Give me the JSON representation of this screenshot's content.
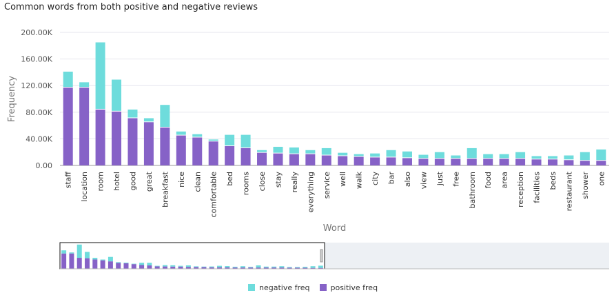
{
  "chart_data": {
    "type": "bar",
    "stacked": true,
    "title": "Common words from both positive and negative reviews",
    "xlabel": "Word",
    "ylabel": "Frequency",
    "ylim": [
      0,
      200000
    ],
    "yticks": [
      "0.00",
      "40.00K",
      "80.00K",
      "120.00K",
      "160.00K",
      "200.00K"
    ],
    "grid": true,
    "legend_position": "bottom",
    "categories": [
      "staff",
      "location",
      "room",
      "hotel",
      "good",
      "great",
      "breakfast",
      "nice",
      "clean",
      "comfortable",
      "bed",
      "rooms",
      "close",
      "stay",
      "really",
      "everything",
      "service",
      "well",
      "walk",
      "city",
      "bar",
      "also",
      "view",
      "just",
      "free",
      "bathroom",
      "food",
      "area",
      "reception",
      "facilities",
      "beds",
      "restaurant",
      "shower",
      "one"
    ],
    "series": [
      {
        "name": "positive freq",
        "color": "#8662c7",
        "values": [
          117000,
          117000,
          84000,
          81000,
          71000,
          65000,
          57000,
          45000,
          42000,
          36000,
          29000,
          26000,
          19000,
          18000,
          17000,
          17000,
          15000,
          14000,
          13000,
          12000,
          12000,
          11000,
          10000,
          10000,
          10000,
          10000,
          10000,
          10000,
          10000,
          9000,
          9000,
          8000,
          7000,
          7000
        ]
      },
      {
        "name": "negative freq",
        "color": "#6edcdc",
        "values": [
          24000,
          8000,
          101000,
          48000,
          13000,
          6000,
          34000,
          6000,
          5000,
          3000,
          17000,
          20000,
          4000,
          10000,
          10000,
          6000,
          11000,
          5000,
          4000,
          6000,
          11000,
          10000,
          6000,
          10000,
          5000,
          16000,
          7000,
          7000,
          10000,
          5000,
          5000,
          7000,
          13000,
          17000
        ]
      }
    ]
  },
  "legend": {
    "negative": "negative freq",
    "positive": "positive freq"
  }
}
